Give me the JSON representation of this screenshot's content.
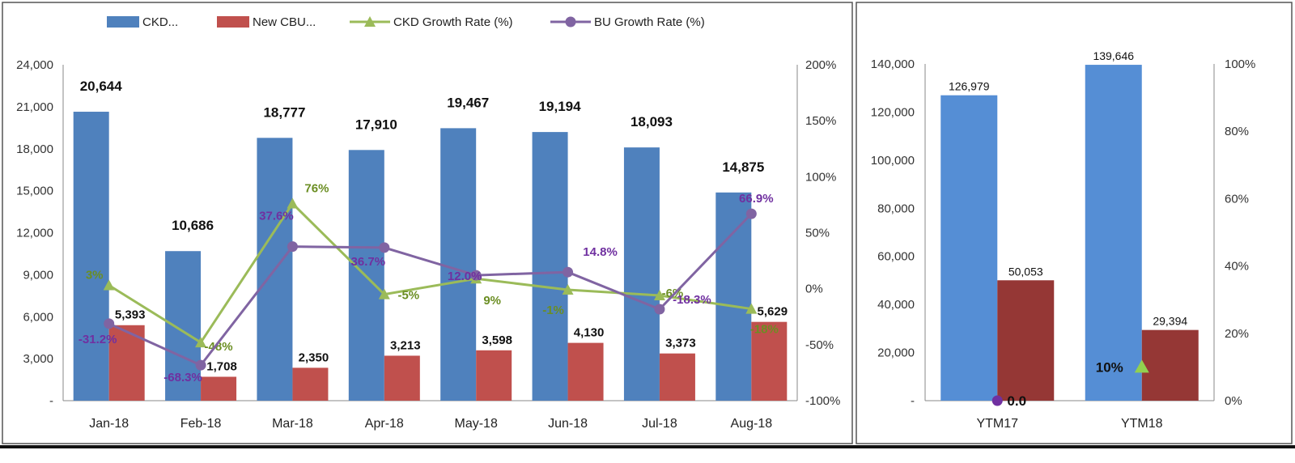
{
  "chart_data": [
    {
      "type": "bar",
      "legend": {
        "position": "top",
        "entries": [
          "CKD...",
          "New CBU...",
          "CKD Growth Rate (%)",
          "BU Growth Rate (%)"
        ]
      },
      "categories": [
        "Jan-18",
        "Feb-18",
        "Mar-18",
        "Apr-18",
        "May-18",
        "Jun-18",
        "Jul-18",
        "Aug-18"
      ],
      "series": [
        {
          "name": "CKD...",
          "kind": "bar",
          "axis": "left",
          "color": "#4f81bd",
          "values": [
            20644,
            10686,
            18777,
            17910,
            19467,
            19194,
            18093,
            14875
          ],
          "labels": [
            "20,644",
            "10,686",
            "18,777",
            "17,910",
            "19,467",
            "19,194",
            "18,093",
            "14,875"
          ]
        },
        {
          "name": "New CBU...",
          "kind": "bar",
          "axis": "left",
          "color": "#c0504d",
          "values": [
            5393,
            1708,
            2350,
            3213,
            3598,
            4130,
            3373,
            5629
          ],
          "labels": [
            "5,393",
            "1,708",
            "2,350",
            "3,213",
            "3,598",
            "4,130",
            "3,373",
            "5,629"
          ]
        },
        {
          "name": "CKD Growth Rate (%)",
          "kind": "line",
          "axis": "right",
          "color": "#9bbb59",
          "values": [
            3,
            -48,
            76,
            -5,
            9,
            -1,
            -6,
            -18
          ],
          "labels": [
            "3%",
            "-48%",
            "76%",
            "-5%",
            "9%",
            "-1%",
            "-6%",
            "-18%"
          ]
        },
        {
          "name": "BU Growth Rate (%)",
          "kind": "line",
          "axis": "right",
          "color": "#8064a2",
          "values": [
            -31.2,
            -68.3,
            37.6,
            36.7,
            12.0,
            14.8,
            -18.3,
            66.9
          ],
          "labels": [
            "-31.2%",
            "-68.3%",
            "37.6%",
            "36.7%",
            "12.0%",
            "14.8%",
            "-18.3%",
            "66.9%"
          ]
        }
      ],
      "y_left": {
        "min": 0,
        "max": 24000,
        "step": 3000,
        "ticks": [
          "-",
          "3,000",
          "6,000",
          "9,000",
          "12,000",
          "15,000",
          "18,000",
          "21,000",
          "24,000"
        ]
      },
      "y_right": {
        "min": -100,
        "max": 200,
        "step": 50,
        "ticks": [
          "-100%",
          "-50%",
          "0%",
          "50%",
          "100%",
          "150%",
          "200%"
        ]
      },
      "grid": false
    },
    {
      "type": "bar",
      "categories": [
        "YTM17",
        "YTM18"
      ],
      "series": [
        {
          "name": "CKD...",
          "kind": "bar",
          "axis": "left",
          "color": "#558ed5",
          "values": [
            126979,
            139646
          ],
          "labels": [
            "126,979",
            "139,646"
          ]
        },
        {
          "name": "New CBU...",
          "kind": "bar",
          "axis": "left",
          "color": "#953735",
          "values": [
            50053,
            29394
          ],
          "labels": [
            "50,053",
            "29,394"
          ]
        },
        {
          "name": "BU Growth Rate (%)",
          "kind": "point",
          "axis": "right",
          "color": "#7030a0",
          "category": "YTM17",
          "value": 0,
          "label": "0.0"
        },
        {
          "name": "CKD Growth Rate (%)",
          "kind": "point",
          "axis": "right",
          "color": "#92d050",
          "category": "YTM18",
          "value": 10,
          "label": "10%"
        }
      ],
      "y_left": {
        "min": 0,
        "max": 140000,
        "step": 20000,
        "ticks": [
          "-",
          "20,000",
          "40,000",
          "60,000",
          "80,000",
          "100,000",
          "120,000",
          "140,000"
        ]
      },
      "y_right": {
        "min": 0,
        "max": 100,
        "step": 20,
        "ticks": [
          "0%",
          "20%",
          "40%",
          "60%",
          "80%",
          "100%"
        ]
      },
      "grid": false
    }
  ]
}
